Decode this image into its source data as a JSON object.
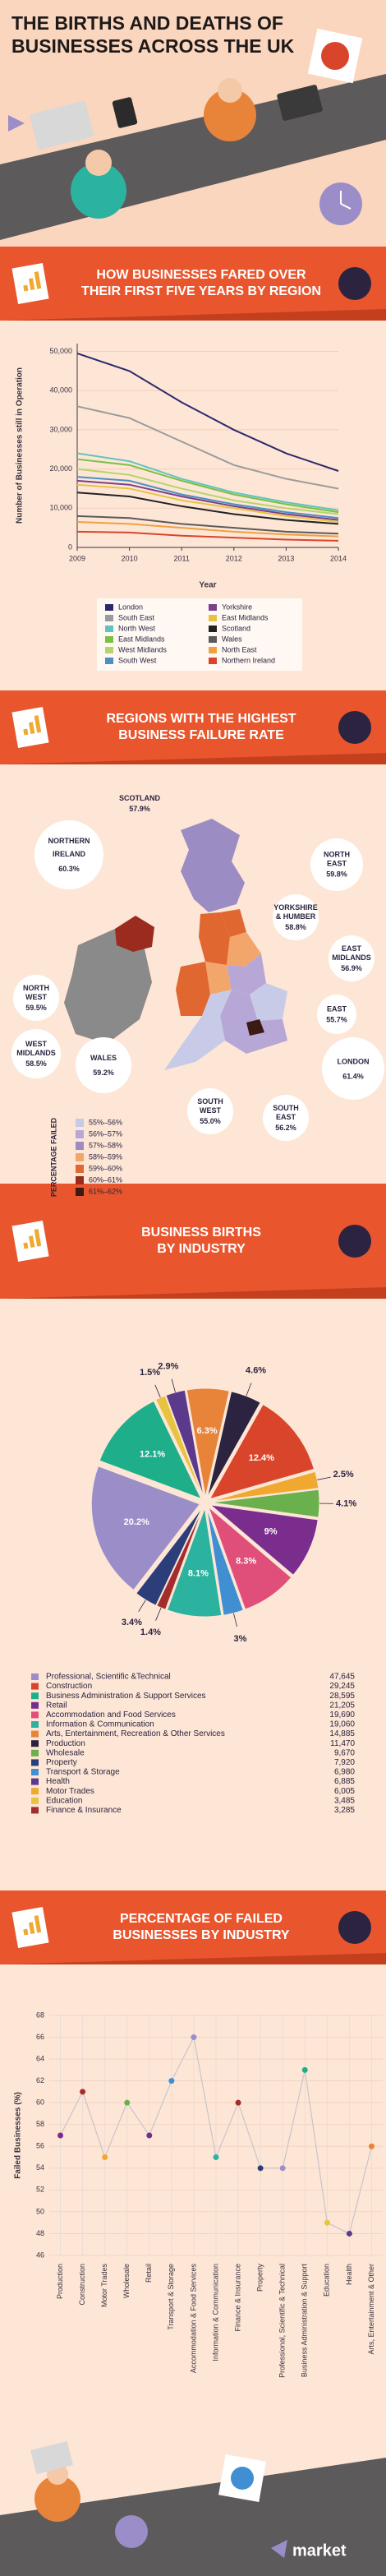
{
  "header": {
    "title_lines": [
      "THE BIRTHS AND DEATHS OF",
      "BUSINESSES ACROSS THE UK"
    ]
  },
  "banners": [
    [
      "HOW BUSINESSES FARED OVER",
      "THEIR FIRST FIVE YEARS BY REGION"
    ],
    [
      "REGIONS WITH THE HIGHEST",
      "BUSINESS FAILURE RATE"
    ],
    [
      "BUSINESS BIRTHS",
      "BY INDUSTRY"
    ],
    [
      "PERCENTAGE OF FAILED",
      "BUSINESSES BY INDUSTRY"
    ]
  ],
  "chart_data": [
    {
      "type": "line",
      "xlabel": "Year",
      "ylabel": "Number of Businesses still in Operation",
      "x": [
        2009,
        2010,
        2011,
        2012,
        2013,
        2014
      ],
      "xlim": [
        2009,
        2014
      ],
      "xticks": [
        2009,
        2010,
        2011,
        2012,
        2013,
        2014
      ],
      "ylim": [
        0,
        52000
      ],
      "yticks": [
        0,
        {
          "value": 10000,
          "label": "10,000"
        },
        {
          "value": 20000,
          "label": "20,000"
        },
        {
          "value": 30000,
          "label": "30,000"
        },
        {
          "value": 40000,
          "label": "40,000"
        },
        {
          "value": 50000,
          "label": "50,000"
        }
      ],
      "grid": true,
      "series": [
        {
          "name": "London",
          "color": "#2c2a6b",
          "values": [
            49500,
            45000,
            37000,
            30000,
            24000,
            19500
          ]
        },
        {
          "name": "South East",
          "color": "#9b9b9b",
          "values": [
            36000,
            33000,
            27000,
            21000,
            17500,
            15000
          ]
        },
        {
          "name": "North West",
          "color": "#5fc4c0",
          "values": [
            24000,
            22000,
            17500,
            14000,
            11500,
            9500
          ]
        },
        {
          "name": "East Midlands",
          "color": "#7bc043",
          "values": [
            22500,
            21000,
            17000,
            13500,
            11000,
            9000
          ]
        },
        {
          "name": "West Midlands",
          "color": "#b5d56a",
          "values": [
            20000,
            18500,
            15000,
            12000,
            10000,
            8500
          ]
        },
        {
          "name": "South West",
          "color": "#4a90c2",
          "values": [
            18000,
            17000,
            13500,
            11000,
            9000,
            7500
          ]
        },
        {
          "name": "Yorkshire",
          "color": "#7b3f8c",
          "values": [
            17000,
            16000,
            13000,
            10500,
            8500,
            7000
          ]
        },
        {
          "name": "East Midlands",
          "color": "#e8c340",
          "values": [
            16000,
            15000,
            12000,
            10000,
            8000,
            6500
          ]
        },
        {
          "name": "Scotland",
          "color": "#222222",
          "values": [
            14000,
            13000,
            10500,
            8500,
            7000,
            6000
          ]
        },
        {
          "name": "Wales",
          "color": "#5a5a5a",
          "values": [
            8000,
            7500,
            6000,
            5000,
            4000,
            3500
          ]
        },
        {
          "name": "North East",
          "color": "#f0a040",
          "values": [
            6500,
            6000,
            5000,
            4000,
            3300,
            2800
          ]
        },
        {
          "name": "Northern Ireland",
          "color": "#d9452b",
          "values": [
            4000,
            3800,
            3000,
            2500,
            2000,
            1700
          ]
        }
      ]
    },
    {
      "type": "pie",
      "values": [
        6.3,
        4.6,
        12.4,
        2.5,
        4.1,
        9,
        8.3,
        3,
        8.1,
        1.4,
        3.4,
        20.2,
        12.1,
        1.5,
        2.9
      ],
      "value_labels": [
        "6.3%",
        "4.6%",
        "12.4%",
        "2.5%",
        "4.1%",
        "9%",
        "8.3%",
        "3%",
        "8.1%",
        "1.4%",
        "3.4%",
        "20.2%",
        "12.1%",
        "1.5%",
        "2.9%"
      ],
      "colors": [
        "#e8833a",
        "#2b2340",
        "#d9452b",
        "#f0a830",
        "#6ab04c",
        "#7b2d8e",
        "#e04f7a",
        "#3f8fd2",
        "#2bb3a0",
        "#a32d2d",
        "#2c3e7a",
        "#9b8dc7",
        "#1fae8a",
        "#e8c340",
        "#5b3a8c"
      ]
    },
    {
      "type": "line",
      "ylabel": "Failed Businesses (%)",
      "categories": [
        "Production",
        "Construction",
        "Motor Trades",
        "Wholesale",
        "Retail",
        "Transport & Storage",
        "Accommodation & Food Services",
        "Information & Communication",
        "Finance & Insurance",
        "Property",
        "Professional, Scientific & Technical",
        "Business Administration & Support",
        "Education",
        "Health",
        "Arts, Entertainment & Other"
      ],
      "values": [
        57,
        61,
        55,
        60,
        57,
        62,
        66,
        55,
        60,
        54,
        54,
        63,
        49,
        48,
        56
      ],
      "colors": [
        "#7b2d8e",
        "#a32d2d",
        "#f0a830",
        "#6ab04c",
        "#7b2d8e",
        "#3f8fd2",
        "#9b8dc7",
        "#2bb3a0",
        "#a32d2d",
        "#2c3e7a",
        "#9b8dc7",
        "#1fae8a",
        "#e8c340",
        "#5b3a8c",
        "#e8833a"
      ],
      "line_color": "#c9c3cc",
      "ylim": [
        46,
        68
      ],
      "yticks": [
        46,
        48,
        50,
        52,
        54,
        56,
        58,
        60,
        62,
        64,
        66,
        68
      ],
      "grid": true
    }
  ],
  "map": {
    "regions": [
      {
        "name": [
          "SCOTLAND"
        ],
        "label": "57.9%"
      },
      {
        "name": [
          "NORTHERN",
          "IRELAND"
        ],
        "label": "60.3%"
      },
      {
        "name": [
          "NORTH",
          "EAST"
        ],
        "label": "59.8%"
      },
      {
        "name": [
          "YORKSHIRE",
          "& HUMBER"
        ],
        "label": "58.8%"
      },
      {
        "name": [
          "EAST",
          "MIDLANDS"
        ],
        "label": "56.9%"
      },
      {
        "name": [
          "EAST"
        ],
        "label": "55.7%"
      },
      {
        "name": [
          "LONDON"
        ],
        "label": "61.4%"
      },
      {
        "name": [
          "SOUTH",
          "EAST"
        ],
        "label": "56.2%"
      },
      {
        "name": [
          "SOUTH",
          "WEST"
        ],
        "label": "55.0%"
      },
      {
        "name": [
          "WALES"
        ],
        "label": "59.2%"
      },
      {
        "name": [
          "WEST",
          "MIDLANDS"
        ],
        "label": "58.5%"
      },
      {
        "name": [
          "NORTH",
          "WEST"
        ],
        "label": "59.5%"
      }
    ],
    "legend_title": "PERCENTAGE FAILED",
    "legend": [
      {
        "label": "55%–56%",
        "color": "#c7cbe8"
      },
      {
        "label": "56%–57%",
        "color": "#b7a7d6"
      },
      {
        "label": "57%–58%",
        "color": "#9c8cc4"
      },
      {
        "label": "58%–59%",
        "color": "#f2a66b"
      },
      {
        "label": "59%–60%",
        "color": "#e0672f"
      },
      {
        "label": "60%–61%",
        "color": "#9b2a1f"
      },
      {
        "label": "61%–62%",
        "color": "#3b1a14"
      }
    ]
  },
  "industry_table": [
    {
      "name": "Professional, Scientific &Technical",
      "births": "47,645",
      "color": "#9b8dc7"
    },
    {
      "name": "Construction",
      "births": "29,245",
      "color": "#d9452b"
    },
    {
      "name": "Business Administration & Support Services",
      "births": "28,595",
      "color": "#1fae8a"
    },
    {
      "name": "Retail",
      "births": "21,205",
      "color": "#7b2d8e"
    },
    {
      "name": "Accommodation and Food Services",
      "births": "19,690",
      "color": "#e04f7a"
    },
    {
      "name": "Information & Communication",
      "births": "19,060",
      "color": "#2bb3a0"
    },
    {
      "name": "Arts, Entertainment, Recreation & Other Services",
      "births": "14,885",
      "color": "#e8833a"
    },
    {
      "name": "Production",
      "births": "11,470",
      "color": "#2b2340"
    },
    {
      "name": "Wholesale",
      "births": "9,670",
      "color": "#6ab04c"
    },
    {
      "name": "Property",
      "births": "7,920",
      "color": "#2c3e7a"
    },
    {
      "name": "Transport & Storage",
      "births": "6,980",
      "color": "#3f8fd2"
    },
    {
      "name": "Health",
      "births": "6,885",
      "color": "#5b3a8c"
    },
    {
      "name": "Motor Trades",
      "births": "6,005",
      "color": "#f0a830"
    },
    {
      "name": "Education",
      "births": "3,485",
      "color": "#e8c340"
    },
    {
      "name": "Finance & Insurance",
      "births": "3,285",
      "color": "#a32d2d"
    }
  ],
  "footer": {
    "logo": "market"
  }
}
